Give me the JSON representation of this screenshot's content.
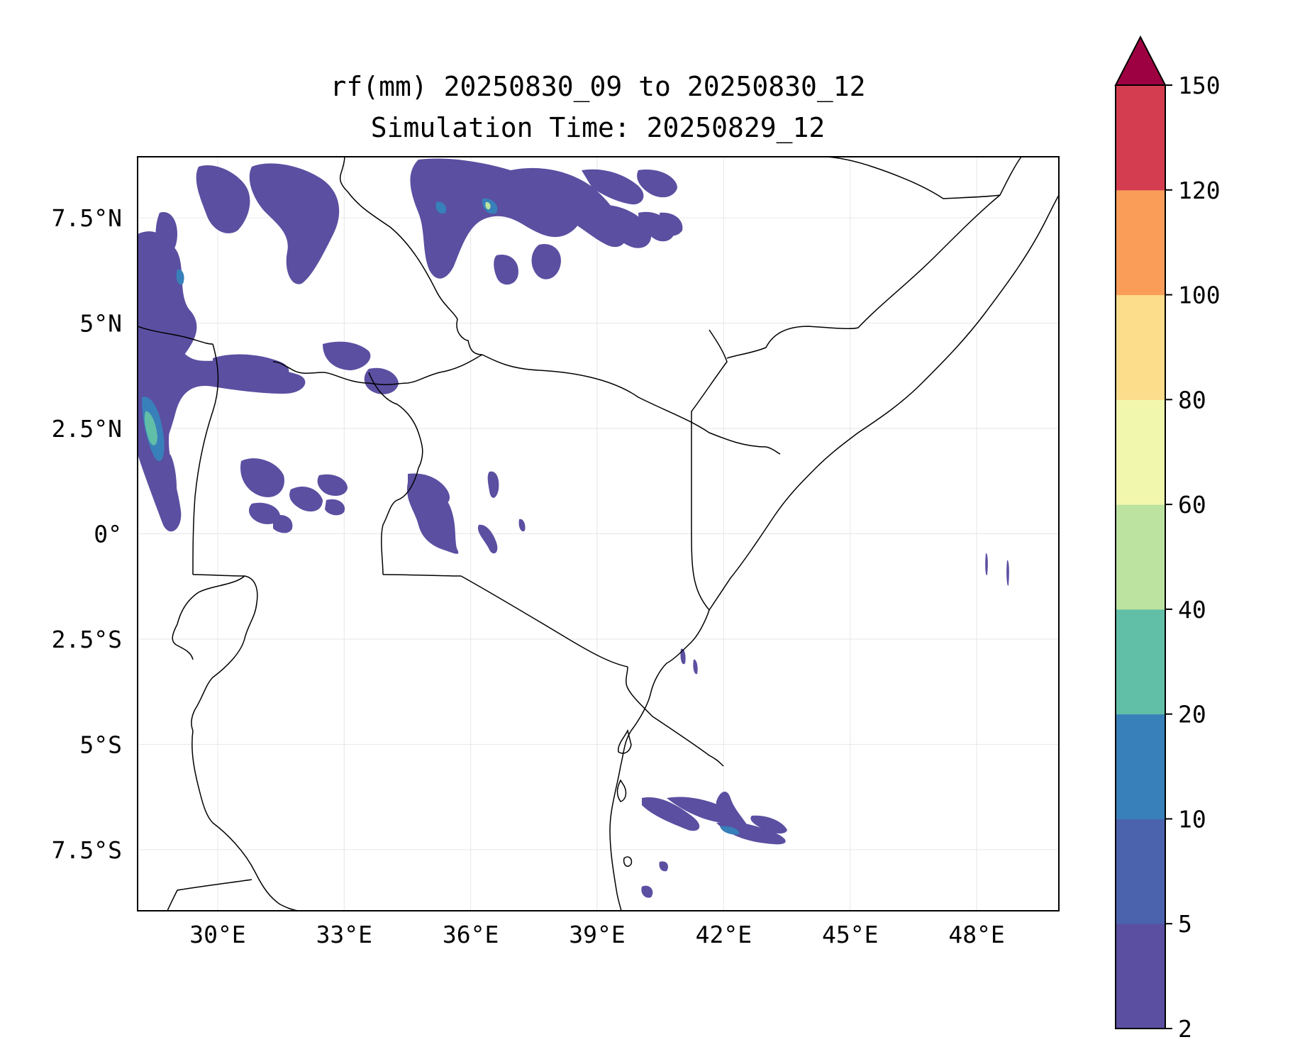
{
  "title": {
    "line1": "rf(mm) 20250830_09 to 20250830_12",
    "line2": "Simulation Time: 20250829_12"
  },
  "map": {
    "x_ticks": [
      "30°E",
      "33°E",
      "36°E",
      "39°E",
      "42°E",
      "45°E",
      "48°E"
    ],
    "y_ticks": [
      "7.5°N",
      "5°N",
      "2.5°N",
      "0°",
      "2.5°S",
      "5°S",
      "7.5°S"
    ],
    "lon_range": [
      28.1,
      49.95
    ],
    "lat_range": [
      -8.95,
      8.95
    ],
    "gridlines": true
  },
  "colorbar": {
    "levels": [
      2,
      5,
      10,
      20,
      40,
      60,
      80,
      100,
      120,
      150
    ],
    "tick_labels": [
      "2",
      "5",
      "10",
      "20",
      "40",
      "60",
      "80",
      "100",
      "120",
      "150"
    ],
    "colors": [
      "#5a4fa1",
      "#4b62ad",
      "#3880b9",
      "#61bea7",
      "#bde3a0",
      "#f2f7ae",
      "#fbdd8b",
      "#f99d59",
      "#d43d4f",
      "#9e0142"
    ],
    "extend": "max"
  }
}
